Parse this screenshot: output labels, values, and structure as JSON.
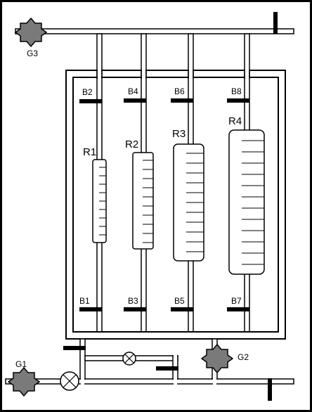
{
  "labels": {
    "gears": {
      "g1": "G1",
      "g2": "G2",
      "g3": "G3"
    },
    "valves": {
      "b1": "B1",
      "b2": "B2",
      "b3": "B3",
      "b4": "B4",
      "b5": "B5",
      "b6": "B6",
      "b7": "B7",
      "b8": "B8"
    },
    "tanks": {
      "r1": "R1",
      "r2": "R2",
      "r3": "R3",
      "r4": "R4"
    }
  },
  "colors": {
    "frame": "#000000",
    "background": "#ffffff",
    "gear_fill": "#7a7a7a"
  }
}
